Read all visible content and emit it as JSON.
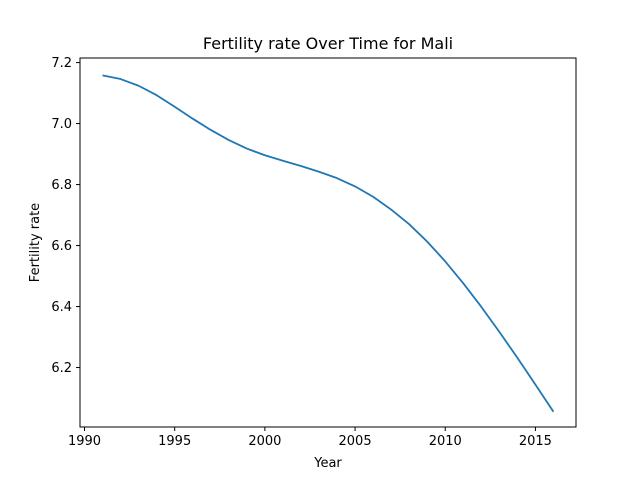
{
  "chart_data": {
    "type": "line",
    "title": "Fertility rate Over Time for Mali",
    "xlabel": "Year",
    "ylabel": "Fertility rate",
    "xlim": [
      1989.75,
      2017.25
    ],
    "ylim": [
      6.005,
      7.215
    ],
    "xticks": [
      1990,
      1995,
      2000,
      2005,
      2010,
      2015
    ],
    "yticks": [
      6.2,
      6.4,
      6.6,
      6.8,
      7.0,
      7.2
    ],
    "xtick_labels": [
      "1990",
      "1995",
      "2000",
      "2005",
      "2010",
      "2015"
    ],
    "ytick_labels": [
      "6.2",
      "6.4",
      "6.6",
      "6.8",
      "7.0",
      "7.2"
    ],
    "grid": false,
    "series": [
      {
        "color": "#1f77b4",
        "x": [
          1991,
          1992,
          1993,
          1994,
          1995,
          1996,
          1997,
          1998,
          1999,
          2000,
          2001,
          2002,
          2003,
          2004,
          2005,
          2006,
          2007,
          2008,
          2009,
          2010,
          2011,
          2012,
          2013,
          2014,
          2015,
          2016
        ],
        "y": [
          7.158,
          7.146,
          7.124,
          7.093,
          7.055,
          7.016,
          6.979,
          6.946,
          6.918,
          6.896,
          6.878,
          6.861,
          6.842,
          6.821,
          6.794,
          6.76,
          6.718,
          6.67,
          6.613,
          6.548,
          6.476,
          6.399,
          6.317,
          6.232,
          6.144,
          6.055
        ]
      }
    ]
  }
}
